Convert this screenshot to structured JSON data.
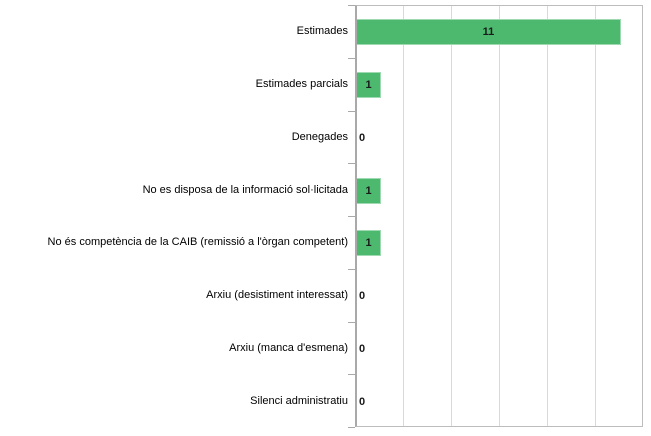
{
  "chart_data": {
    "type": "bar",
    "orientation": "horizontal",
    "title": "",
    "xlabel": "",
    "ylabel": "",
    "categories": [
      "Estimades",
      "Estimades parcials",
      "Denegades",
      "No es disposa de la informació sol·licitada",
      "No és competència de la CAIB (remissió a l'òrgan competent)",
      "Arxiu (desistiment interessat)",
      "Arxiu (manca d'esmena)",
      "Silenci administratiu"
    ],
    "values": [
      11,
      1,
      0,
      1,
      1,
      0,
      0,
      0
    ],
    "xlim": [
      0,
      12
    ],
    "gridline_interval": 2,
    "grid": true,
    "legend": "none",
    "x_tick_labels_visible": false,
    "bar_color": "#4cb96f",
    "bar_border_color": "#9ed9b2",
    "gridline_color": "#d9d9d9",
    "axis_color": "#a9a9a9",
    "label_color": "#000000"
  }
}
